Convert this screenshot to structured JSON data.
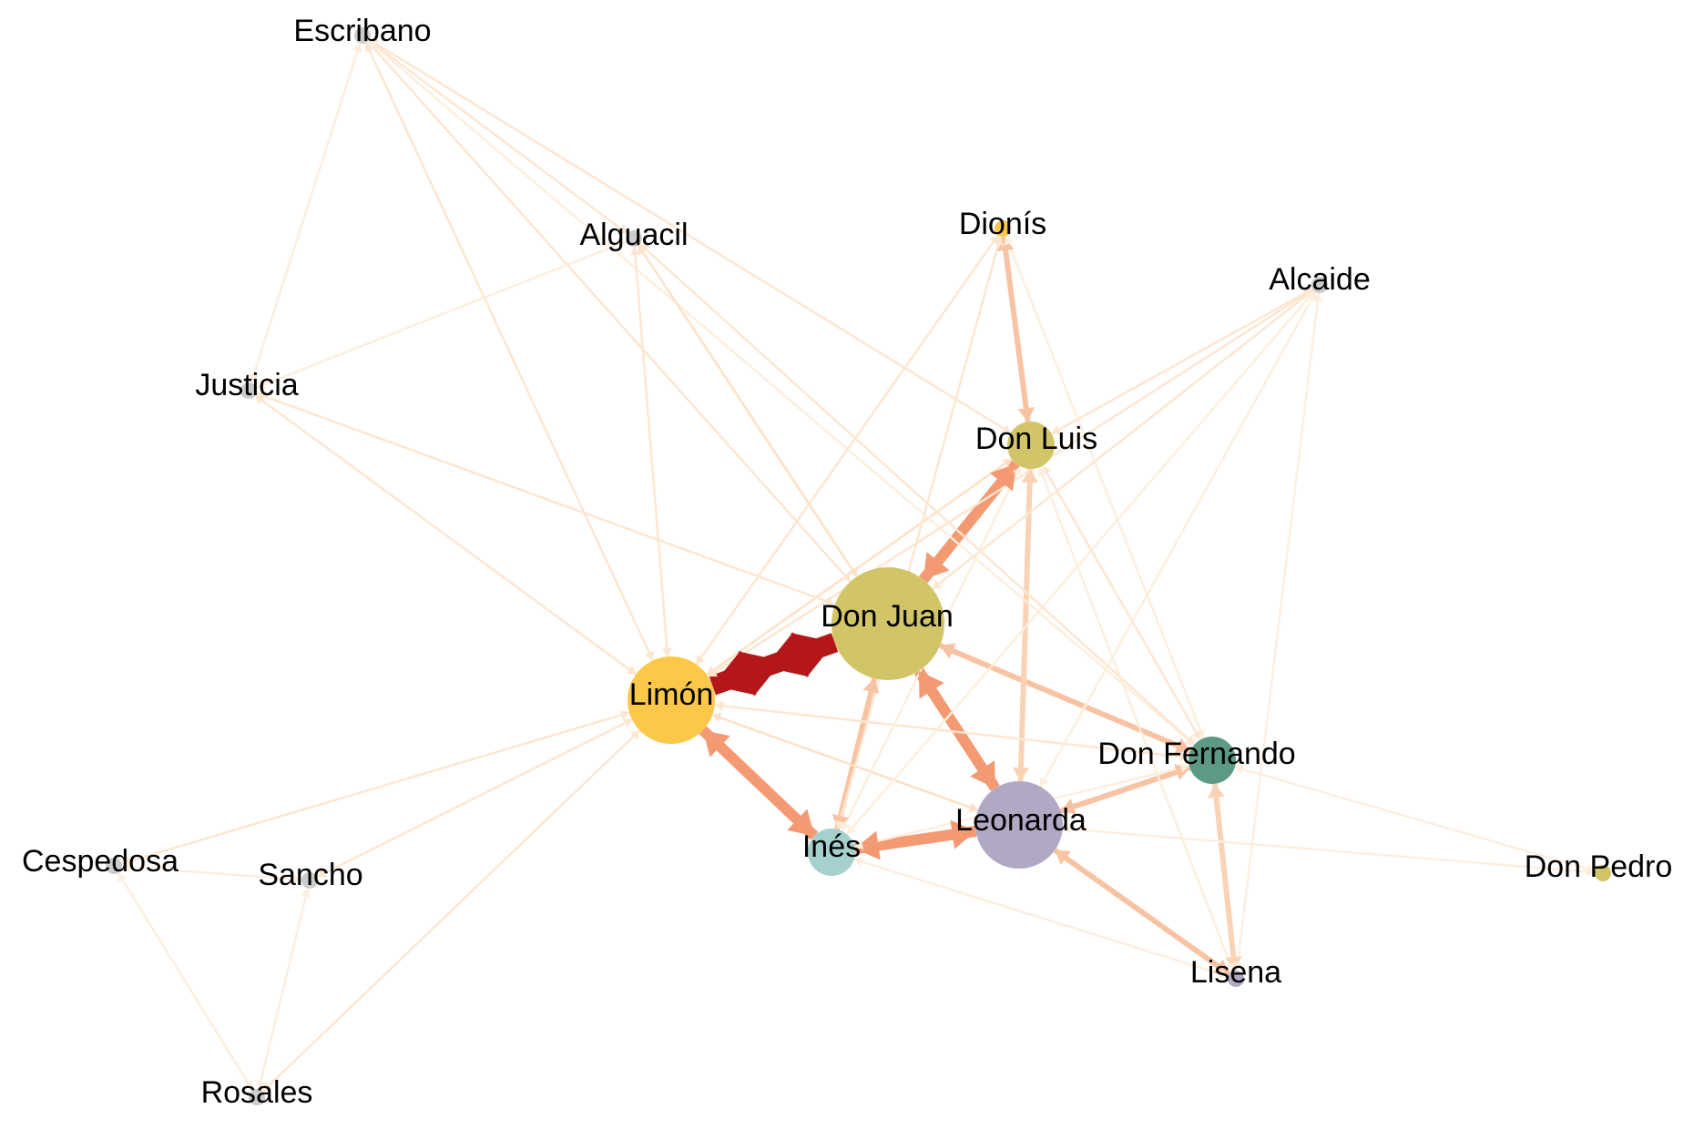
{
  "graph": {
    "nodes": [
      {
        "id": "escribano",
        "label": "Escribano",
        "color": "#cccccc",
        "size": "small"
      },
      {
        "id": "alguacil",
        "label": "Alguacil",
        "color": "#cccccc",
        "size": "small"
      },
      {
        "id": "dionis",
        "label": "Dionís",
        "color": "#fdc84a",
        "size": "small"
      },
      {
        "id": "alcaide",
        "label": "Alcaide",
        "color": "#cccccc",
        "size": "small"
      },
      {
        "id": "justicia",
        "label": "Justicia",
        "color": "#cccccc",
        "size": "small"
      },
      {
        "id": "donluis",
        "label": "Don Luis",
        "color": "#d2c567",
        "size": "medium"
      },
      {
        "id": "donjuan",
        "label": "Don Juan",
        "color": "#d2c567",
        "size": "largest"
      },
      {
        "id": "limon",
        "label": "Limón",
        "color": "#fdc84a",
        "size": "large"
      },
      {
        "id": "donfernando",
        "label": "Don Fernando",
        "color": "#5c9a84",
        "size": "medium"
      },
      {
        "id": "leonarda",
        "label": "Leonarda",
        "color": "#b1a8c3",
        "size": "large"
      },
      {
        "id": "ines",
        "label": "Inés",
        "color": "#a6d0ce",
        "size": "medium"
      },
      {
        "id": "cespedosa",
        "label": "Cespedosa",
        "color": "#cccccc",
        "size": "small"
      },
      {
        "id": "sancho",
        "label": "Sancho",
        "color": "#cccccc",
        "size": "small"
      },
      {
        "id": "donpedro",
        "label": "Don Pedro",
        "color": "#d2c567",
        "size": "small"
      },
      {
        "id": "lisena",
        "label": "Lisena",
        "color": "#b1a8c3",
        "size": "small"
      },
      {
        "id": "rosales",
        "label": "Rosales",
        "color": "#cccccc",
        "size": "small"
      }
    ],
    "edges": [
      {
        "from": "limon",
        "to": "donjuan",
        "weight": "strongest",
        "color": "#b31717"
      },
      {
        "from": "donjuan",
        "to": "donluis",
        "weight": "strong",
        "color": "#f39a72"
      },
      {
        "from": "limon",
        "to": "ines",
        "weight": "strong",
        "color": "#f39a72"
      },
      {
        "from": "donjuan",
        "to": "leonarda",
        "weight": "strong",
        "color": "#f39a72"
      },
      {
        "from": "ines",
        "to": "leonarda",
        "weight": "strong",
        "color": "#f39a72"
      },
      {
        "from": "donjuan",
        "to": "donfernando",
        "weight": "medium",
        "color": "#f8c3a2"
      },
      {
        "from": "leonarda",
        "to": "donfernando",
        "weight": "medium",
        "color": "#f8c3a2"
      },
      {
        "from": "donjuan",
        "to": "ines",
        "weight": "medium",
        "color": "#f8c3a2"
      },
      {
        "from": "leonarda",
        "to": "lisena",
        "weight": "medium",
        "color": "#f8c3a2"
      },
      {
        "from": "dionis",
        "to": "donluis",
        "weight": "medium",
        "color": "#f8c3a2"
      },
      {
        "from": "donluis",
        "to": "leonarda",
        "weight": "medium",
        "color": "#fad3b6"
      },
      {
        "from": "donfernando",
        "to": "lisena",
        "weight": "medium",
        "color": "#fad3b6"
      },
      {
        "from": "limon",
        "to": "donluis",
        "weight": "light",
        "color": "#fde0c5"
      },
      {
        "from": "limon",
        "to": "leonarda",
        "weight": "light",
        "color": "#fde0c5"
      },
      {
        "from": "limon",
        "to": "donfernando",
        "weight": "light",
        "color": "#fde6d0"
      },
      {
        "from": "limon",
        "to": "dionis",
        "weight": "light",
        "color": "#fde6d0"
      },
      {
        "from": "escribano",
        "to": "limon",
        "weight": "light",
        "color": "#fde6d0"
      },
      {
        "from": "escribano",
        "to": "donjuan",
        "weight": "light",
        "color": "#fde6d0"
      },
      {
        "from": "escribano",
        "to": "donluis",
        "weight": "light",
        "color": "#fde6d0"
      },
      {
        "from": "escribano",
        "to": "alguacil",
        "weight": "light",
        "color": "#fde6d0"
      },
      {
        "from": "escribano",
        "to": "justicia",
        "weight": "light",
        "color": "#fdeedd"
      },
      {
        "from": "escribano",
        "to": "donfernando",
        "weight": "light",
        "color": "#fdeedd"
      },
      {
        "from": "alguacil",
        "to": "donjuan",
        "weight": "light",
        "color": "#fde0c5"
      },
      {
        "from": "alguacil",
        "to": "limon",
        "weight": "light",
        "color": "#fde6d0"
      },
      {
        "from": "alguacil",
        "to": "justicia",
        "weight": "light",
        "color": "#fdeedd"
      },
      {
        "from": "alguacil",
        "to": "donfernando",
        "weight": "light",
        "color": "#fde6d0"
      },
      {
        "from": "justicia",
        "to": "limon",
        "weight": "light",
        "color": "#fde6d0"
      },
      {
        "from": "justicia",
        "to": "donjuan",
        "weight": "light",
        "color": "#fde6d0"
      },
      {
        "from": "alcaide",
        "to": "limon",
        "weight": "light",
        "color": "#fde6d0"
      },
      {
        "from": "alcaide",
        "to": "donjuan",
        "weight": "light",
        "color": "#fde6d0"
      },
      {
        "from": "alcaide",
        "to": "donluis",
        "weight": "light",
        "color": "#fde6d0"
      },
      {
        "from": "alcaide",
        "to": "ines",
        "weight": "light",
        "color": "#fdeedd"
      },
      {
        "from": "alcaide",
        "to": "leonarda",
        "weight": "light",
        "color": "#fdeedd"
      },
      {
        "from": "alcaide",
        "to": "lisena",
        "weight": "light",
        "color": "#fdeedd"
      },
      {
        "from": "dionis",
        "to": "ines",
        "weight": "light",
        "color": "#fde6d0"
      },
      {
        "from": "dionis",
        "to": "donfernando",
        "weight": "light",
        "color": "#fdeedd"
      },
      {
        "from": "donluis",
        "to": "donfernando",
        "weight": "light",
        "color": "#fde6d0"
      },
      {
        "from": "donluis",
        "to": "lisena",
        "weight": "light",
        "color": "#fdeedd"
      },
      {
        "from": "donluis",
        "to": "ines",
        "weight": "light",
        "color": "#fdeedd"
      },
      {
        "from": "cespedosa",
        "to": "limon",
        "weight": "light",
        "color": "#fde6d0"
      },
      {
        "from": "cespedosa",
        "to": "sancho",
        "weight": "light",
        "color": "#fdeedd"
      },
      {
        "from": "cespedosa",
        "to": "rosales",
        "weight": "light",
        "color": "#fdeedd"
      },
      {
        "from": "sancho",
        "to": "limon",
        "weight": "light",
        "color": "#fde6d0"
      },
      {
        "from": "sancho",
        "to": "rosales",
        "weight": "light",
        "color": "#fdeedd"
      },
      {
        "from": "rosales",
        "to": "limon",
        "weight": "light",
        "color": "#fde6d0"
      },
      {
        "from": "ines",
        "to": "lisena",
        "weight": "light",
        "color": "#fdeedd"
      },
      {
        "from": "ines",
        "to": "donfernando",
        "weight": "light",
        "color": "#fdeedd"
      },
      {
        "from": "donfernando",
        "to": "donpedro",
        "weight": "light",
        "color": "#fdeedd"
      },
      {
        "from": "leonarda",
        "to": "donpedro",
        "weight": "light",
        "color": "#fdeedd"
      }
    ]
  }
}
